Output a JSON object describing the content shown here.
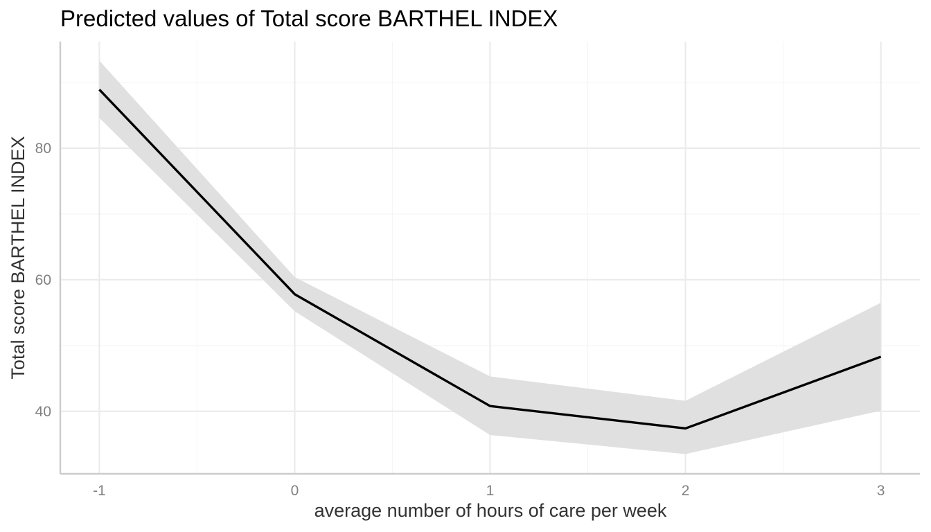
{
  "chart_data": {
    "type": "line",
    "title": "Predicted values of Total score BARTHEL INDEX",
    "xlabel": "average number of hours of care per week",
    "ylabel": "Total score BARTHEL INDEX",
    "x": [
      -1,
      0,
      1,
      2,
      3
    ],
    "series": [
      {
        "values": [
          88.9,
          57.8,
          40.8,
          37.4,
          48.3
        ],
        "ci_low": [
          84.6,
          55.2,
          36.4,
          33.5,
          40.1
        ],
        "ci_high": [
          93.3,
          60.4,
          45.3,
          41.6,
          56.5
        ]
      }
    ],
    "xlim": [
      -1.2,
      3.2
    ],
    "ylim": [
      30.5,
      96.2
    ],
    "x_ticks": [
      -1,
      0,
      1,
      2,
      3
    ],
    "x_tick_labels": [
      "-1",
      "0",
      "1",
      "2",
      "3"
    ],
    "x_minor_ticks": [
      -0.5,
      0.5,
      1.5,
      2.5
    ],
    "y_ticks": [
      40,
      60,
      80
    ],
    "y_tick_labels": [
      "40",
      "60",
      "80"
    ],
    "y_minor_ticks": [
      50,
      70,
      90
    ],
    "grid": true,
    "legend": "none",
    "colors": {
      "line": "#000000",
      "ribbon": "#e0e0e0",
      "grid_major": "#ebebeb",
      "grid_minor": "#f5f5f5",
      "axis": "#cccccc",
      "tick_text": "#808080",
      "axis_title": "#333333"
    }
  }
}
